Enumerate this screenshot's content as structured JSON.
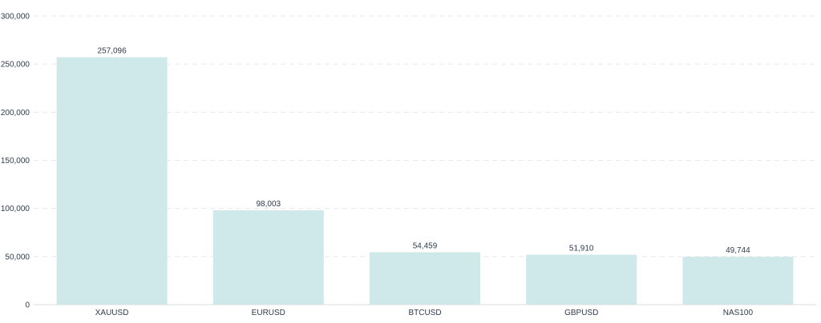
{
  "chart_data": {
    "type": "bar",
    "categories": [
      "XAUUSD",
      "EURUSD",
      "BTCUSD",
      "GBPUSD",
      "NAS100"
    ],
    "values": [
      257096,
      98003,
      54459,
      51910,
      49744
    ],
    "value_labels": [
      "257,096",
      "98,003",
      "54,459",
      "51,910",
      "49,744"
    ],
    "title": "",
    "xlabel": "",
    "ylabel": "",
    "ylim": [
      0,
      300000
    ],
    "yticks": [
      0,
      50000,
      100000,
      150000,
      200000,
      250000,
      300000
    ],
    "ytick_labels": [
      "0",
      "50,000",
      "100,000",
      "150,000",
      "200,000",
      "250,000",
      "300,000"
    ],
    "grid": true,
    "legend": "none",
    "bar_color": "#cfe9ea"
  }
}
